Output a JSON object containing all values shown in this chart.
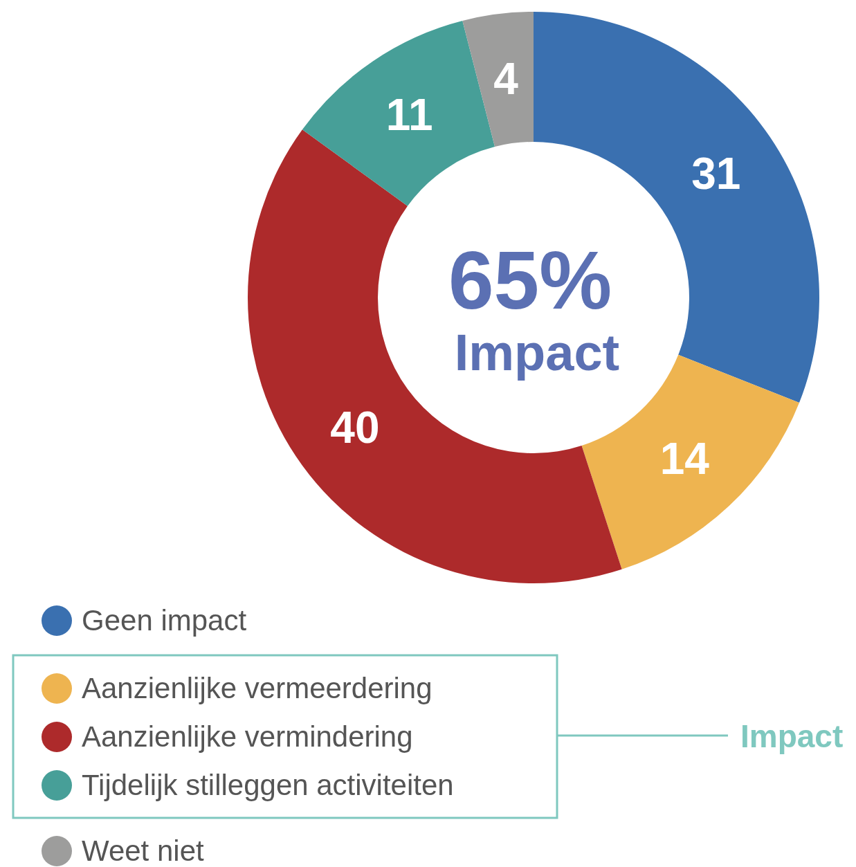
{
  "chart_data": {
    "type": "donut",
    "categories": [
      "Geen impact",
      "Aanzienlijke vermeerdering",
      "Aanzienlijke vermindering",
      "Tijdelijk stilleggen activiteiten",
      "Weet niet"
    ],
    "values": [
      31,
      14,
      40,
      11,
      4
    ],
    "colors": [
      "#3a70b0",
      "#eeb450",
      "#ad2a2b",
      "#479f98",
      "#9d9d9c"
    ],
    "data_labels": true,
    "legend": "bottom left",
    "annotations": [
      "65%",
      "Impact",
      "Impact"
    ]
  }
}
